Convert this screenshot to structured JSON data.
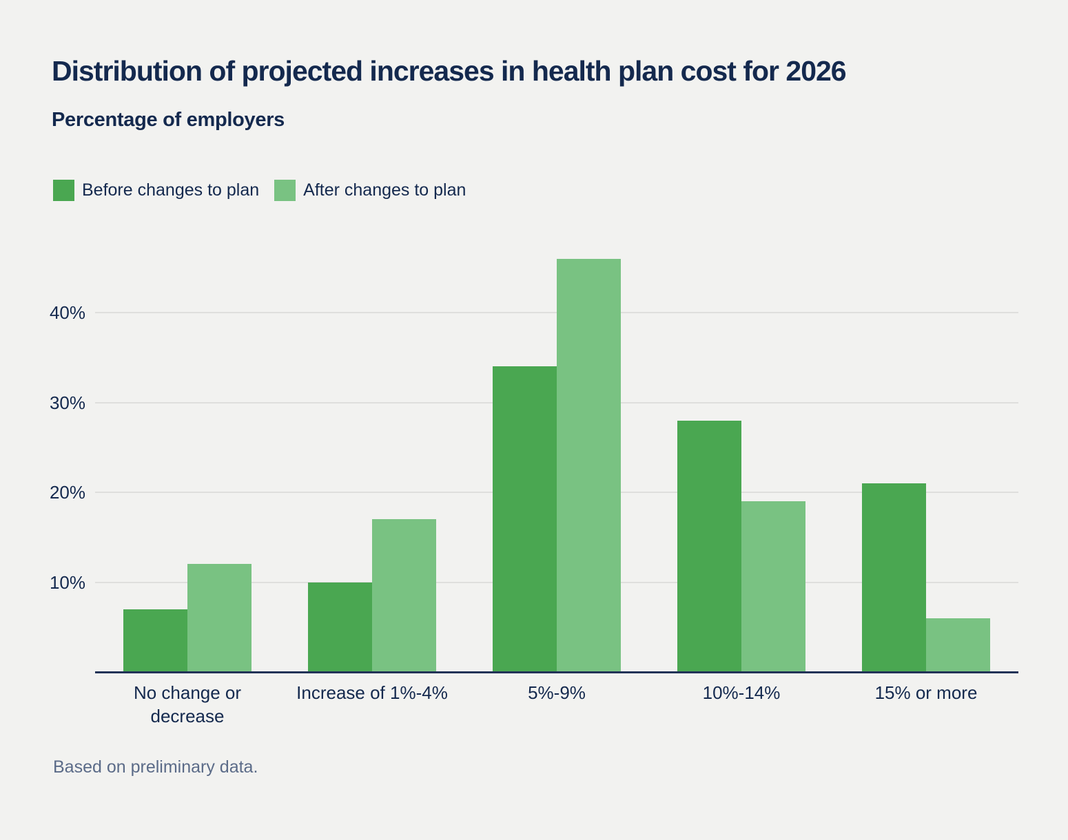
{
  "header": {
    "title": "Distribution of projected increases in health plan cost for 2026",
    "subtitle": "Percentage of employers"
  },
  "legend": {
    "items": [
      {
        "label": "Before changes to plan",
        "color": "#4aa751"
      },
      {
        "label": "After changes to plan",
        "color": "#79c282"
      }
    ]
  },
  "chart_data": {
    "type": "bar",
    "title": "Distribution of projected increases in health plan cost for 2026",
    "ylabel": "Percentage of employers",
    "categories": [
      "No change or decrease",
      "Increase of 1%-4%",
      "5%-9%",
      "10%-14%",
      "15% or more"
    ],
    "series": [
      {
        "name": "Before changes to plan",
        "color": "#4aa751",
        "values": [
          7,
          10,
          34,
          28,
          21
        ]
      },
      {
        "name": "After changes to plan",
        "color": "#79c282",
        "values": [
          12,
          17,
          46,
          19,
          6
        ]
      }
    ],
    "yticks": [
      10,
      20,
      30,
      40
    ],
    "ytick_suffix": "%",
    "ylim": [
      0,
      47
    ],
    "grid": "horizontal",
    "legend_position": "top-left"
  },
  "footer": {
    "note": "Based on preliminary data."
  }
}
